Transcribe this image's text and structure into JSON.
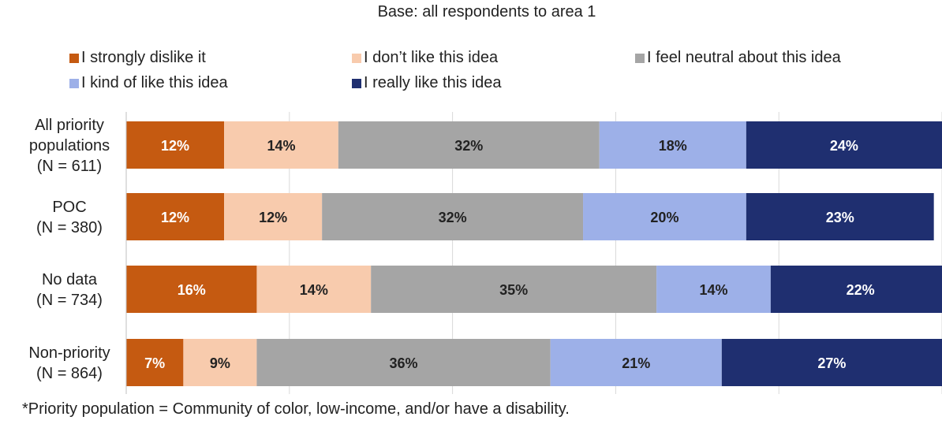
{
  "chart_data": {
    "type": "bar",
    "orientation": "horizontal",
    "stacked": "100%",
    "subtitle": "Base: all respondents to area 1",
    "categories": [
      [
        "All priority",
        "populations",
        "(N = 611)"
      ],
      [
        "POC",
        "(N = 380)"
      ],
      [
        "No data",
        "(N = 734)"
      ],
      [
        "Non-priority",
        "(N = 864)"
      ]
    ],
    "series": [
      {
        "name": "I strongly dislike it",
        "color": "#C55A11",
        "label_color": "#ffffff",
        "values": [
          12,
          12,
          16,
          7
        ]
      },
      {
        "name": "I don’t like this idea",
        "color": "#F8CBAD",
        "label_color": "#222222",
        "values": [
          14,
          12,
          14,
          9
        ]
      },
      {
        "name": "I feel neutral about this idea",
        "color": "#A5A5A5",
        "label_color": "#222222",
        "values": [
          32,
          32,
          35,
          36
        ]
      },
      {
        "name": "I kind of like this idea",
        "color": "#9DB0E8",
        "label_color": "#222222",
        "values": [
          18,
          20,
          14,
          21
        ]
      },
      {
        "name": "I really like this idea",
        "color": "#1F2F70",
        "label_color": "#ffffff",
        "values": [
          24,
          23,
          22,
          27
        ]
      }
    ],
    "value_suffix": "%",
    "legend_position": "top",
    "grid": true,
    "footnote": "*Priority population = Community of color, low-income, and/or have a disability."
  }
}
